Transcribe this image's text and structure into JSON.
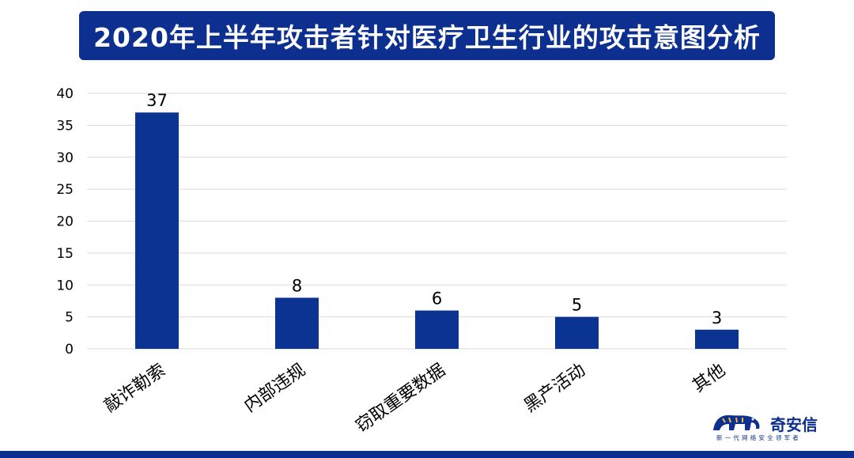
{
  "colors": {
    "banner": "#0d2f8f",
    "bar": "#0b3391",
    "grid": "#d9d9d9"
  },
  "logo": {
    "icon": "tiger-icon",
    "name": "奇安信",
    "tagline": "新一代网络安全领军者"
  },
  "chart_data": {
    "type": "bar",
    "title": "2020年上半年攻击者针对医疗卫生行业的攻击意图分析",
    "categories": [
      "敲诈勒索",
      "内部违规",
      "窃取重要数据",
      "黑产活动",
      "其他"
    ],
    "values": [
      37,
      8,
      6,
      5,
      3
    ],
    "xlabel": "",
    "ylabel": "",
    "ylim": [
      0,
      40
    ],
    "yticks": [
      0,
      5,
      10,
      15,
      20,
      25,
      30,
      35,
      40
    ],
    "grid": true,
    "legend": "none",
    "data_labels": true
  }
}
